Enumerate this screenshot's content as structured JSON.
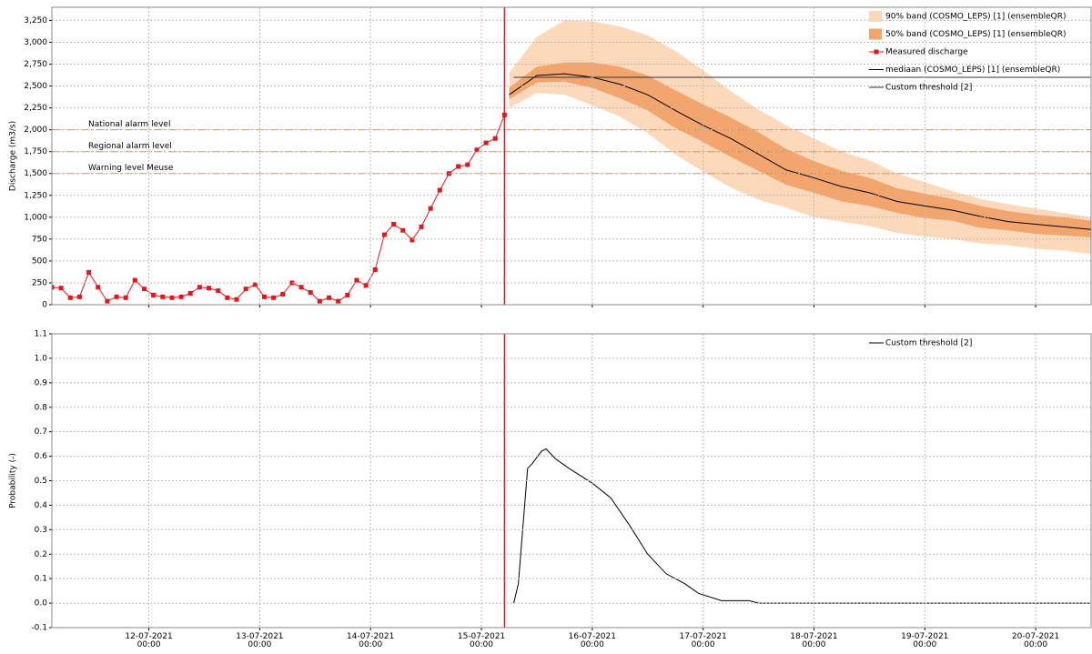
{
  "chart_data": [
    {
      "type": "forecast",
      "ylabel": "Discharge (m3/s)",
      "xlim": [
        "11-07-2021 03:00",
        "20-07-2021 12:00"
      ],
      "ylim": [
        0,
        3400
      ],
      "yticks": [
        0,
        250,
        500,
        750,
        {
          "value": 1000,
          "label": "1,000"
        },
        {
          "value": 1250,
          "label": "1,250"
        },
        {
          "value": 1500,
          "label": "1,500"
        },
        {
          "value": 1750,
          "label": "1,750"
        },
        {
          "value": 2000,
          "label": "2,000"
        },
        {
          "value": 2250,
          "label": "2,250"
        },
        {
          "value": 2500,
          "label": "2,500"
        },
        {
          "value": 2750,
          "label": "2,750"
        },
        {
          "value": 3000,
          "label": "3,000"
        },
        {
          "value": 3250,
          "label": "3,250"
        }
      ],
      "grid": true,
      "vline": "15-07-2021 05:00",
      "vline_color": "#e8141b",
      "levels": [
        {
          "label": "National alarm level",
          "value": 2000
        },
        {
          "label": "Regional alarm level",
          "value": 1750
        },
        {
          "label": "Warning level Meuse",
          "value": 1500
        }
      ],
      "level_color": "#e08a2a",
      "bands": [
        {
          "name": "90% band (COSMO_LEPS) [1]  (ensembleQR)",
          "color": "#fdd9bc",
          "x": [
            "15-07-2021 06:00",
            "15-07-2021 12:00",
            "15-07-2021 18:00",
            "16-07-2021 00:00",
            "16-07-2021 06:00",
            "16-07-2021 12:00",
            "16-07-2021 18:00",
            "17-07-2021 00:00",
            "17-07-2021 06:00",
            "17-07-2021 12:00",
            "17-07-2021 18:00",
            "18-07-2021 00:00",
            "18-07-2021 06:00",
            "18-07-2021 12:00",
            "18-07-2021 18:00",
            "19-07-2021 00:00",
            "19-07-2021 06:00",
            "19-07-2021 12:00",
            "19-07-2021 18:00",
            "20-07-2021 00:00",
            "20-07-2021 06:00",
            "20-07-2021 12:00"
          ],
          "lower": [
            2250,
            2420,
            2400,
            2280,
            2150,
            1960,
            1720,
            1520,
            1340,
            1200,
            1110,
            1000,
            950,
            900,
            820,
            780,
            750,
            700,
            680,
            640,
            620,
            580
          ],
          "upper": [
            2650,
            3060,
            3250,
            3240,
            3180,
            3080,
            2900,
            2680,
            2440,
            2230,
            2050,
            1900,
            1750,
            1650,
            1500,
            1400,
            1300,
            1210,
            1150,
            1100,
            1050,
            1000
          ]
        },
        {
          "name": "50% band (COSMO_LEPS) [1]  (ensembleQR)",
          "color": "#f3a56e",
          "x": [
            "15-07-2021 06:00",
            "15-07-2021 12:00",
            "15-07-2021 18:00",
            "16-07-2021 00:00",
            "16-07-2021 06:00",
            "16-07-2021 12:00",
            "16-07-2021 18:00",
            "17-07-2021 00:00",
            "17-07-2021 06:00",
            "17-07-2021 12:00",
            "17-07-2021 18:00",
            "18-07-2021 00:00",
            "18-07-2021 06:00",
            "18-07-2021 12:00",
            "18-07-2021 18:00",
            "19-07-2021 00:00",
            "19-07-2021 06:00",
            "19-07-2021 12:00",
            "19-07-2021 18:00",
            "20-07-2021 00:00",
            "20-07-2021 06:00",
            "20-07-2021 12:00"
          ],
          "lower": [
            2350,
            2540,
            2550,
            2480,
            2360,
            2220,
            2020,
            1860,
            1690,
            1530,
            1370,
            1280,
            1180,
            1130,
            1050,
            990,
            960,
            880,
            850,
            810,
            790,
            770
          ],
          "upper": [
            2480,
            2720,
            2770,
            2770,
            2720,
            2620,
            2450,
            2290,
            2140,
            1970,
            1780,
            1640,
            1530,
            1450,
            1330,
            1270,
            1210,
            1130,
            1070,
            1030,
            1000,
            960
          ]
        }
      ],
      "series": [
        {
          "name": "Measured discharge",
          "color": "#e8141b",
          "markers": true,
          "x": [
            "11-07-2021 03:00",
            "11-07-2021 05:00",
            "11-07-2021 07:00",
            "11-07-2021 09:00",
            "11-07-2021 11:00",
            "11-07-2021 13:00",
            "11-07-2021 15:00",
            "11-07-2021 17:00",
            "11-07-2021 19:00",
            "11-07-2021 21:00",
            "11-07-2021 23:00",
            "12-07-2021 01:00",
            "12-07-2021 03:00",
            "12-07-2021 05:00",
            "12-07-2021 07:00",
            "12-07-2021 09:00",
            "12-07-2021 11:00",
            "12-07-2021 13:00",
            "12-07-2021 15:00",
            "12-07-2021 17:00",
            "12-07-2021 19:00",
            "12-07-2021 21:00",
            "12-07-2021 23:00",
            "13-07-2021 01:00",
            "13-07-2021 03:00",
            "13-07-2021 05:00",
            "13-07-2021 07:00",
            "13-07-2021 09:00",
            "13-07-2021 11:00",
            "13-07-2021 13:00",
            "13-07-2021 15:00",
            "13-07-2021 17:00",
            "13-07-2021 19:00",
            "13-07-2021 21:00",
            "13-07-2021 23:00",
            "14-07-2021 01:00",
            "14-07-2021 03:00",
            "14-07-2021 05:00",
            "14-07-2021 07:00",
            "14-07-2021 09:00",
            "14-07-2021 11:00",
            "14-07-2021 13:00",
            "14-07-2021 15:00",
            "14-07-2021 17:00",
            "14-07-2021 19:00",
            "14-07-2021 21:00",
            "14-07-2021 23:00",
            "15-07-2021 01:00",
            "15-07-2021 03:00",
            "15-07-2021 05:00"
          ],
          "values": [
            200,
            190,
            80,
            90,
            370,
            200,
            40,
            90,
            80,
            280,
            180,
            110,
            90,
            80,
            90,
            130,
            200,
            190,
            160,
            80,
            60,
            180,
            230,
            90,
            80,
            120,
            250,
            200,
            140,
            40,
            80,
            40,
            110,
            280,
            220,
            400,
            800,
            920,
            850,
            740,
            890,
            1100,
            1310,
            1500,
            1580,
            1600,
            1770,
            1850,
            1900,
            2170
          ]
        },
        {
          "name": "mediaan (COSMO_LEPS) [1]  (ensembleQR)",
          "color": "#000000",
          "markers": false,
          "x": [
            "15-07-2021 06:00",
            "15-07-2021 12:00",
            "15-07-2021 18:00",
            "16-07-2021 00:00",
            "16-07-2021 06:00",
            "16-07-2021 12:00",
            "16-07-2021 18:00",
            "17-07-2021 00:00",
            "17-07-2021 06:00",
            "17-07-2021 12:00",
            "17-07-2021 18:00",
            "18-07-2021 00:00",
            "18-07-2021 06:00",
            "18-07-2021 12:00",
            "18-07-2021 18:00",
            "19-07-2021 00:00",
            "19-07-2021 06:00",
            "19-07-2021 12:00",
            "19-07-2021 18:00",
            "20-07-2021 00:00",
            "20-07-2021 06:00",
            "20-07-2021 12:00"
          ],
          "values": [
            2400,
            2620,
            2640,
            2600,
            2520,
            2400,
            2220,
            2050,
            1900,
            1720,
            1540,
            1450,
            1350,
            1280,
            1180,
            1130,
            1080,
            1010,
            950,
            920,
            890,
            860
          ]
        },
        {
          "name": "Custom threshold [2]",
          "color": "#333333",
          "markers": false,
          "x": [
            "15-07-2021 07:00",
            "20-07-2021 12:00"
          ],
          "values": [
            2600,
            2600
          ]
        }
      ]
    },
    {
      "type": "forecast",
      "ylabel": "Probability (-)",
      "xlim": [
        "11-07-2021 03:00",
        "20-07-2021 12:00"
      ],
      "xticks": [
        "12-07-2021 00:00",
        "13-07-2021 00:00",
        "14-07-2021 00:00",
        "15-07-2021 00:00",
        "16-07-2021 00:00",
        "17-07-2021 00:00",
        "18-07-2021 00:00",
        "19-07-2021 00:00",
        "20-07-2021 00:00"
      ],
      "ylim": [
        -0.1,
        1.1
      ],
      "yticks": [
        -0.1,
        {
          "value": 0,
          "label": "0.0"
        },
        0.1,
        0.2,
        0.3,
        0.4,
        0.5,
        0.6,
        0.7,
        0.8,
        0.9,
        {
          "value": 1,
          "label": "1.0"
        },
        1.1
      ],
      "grid": true,
      "vline": "15-07-2021 05:00",
      "vline_color": "#e8141b",
      "series": [
        {
          "name": "Custom threshold [2]",
          "color": "#000000",
          "markers": false,
          "x": [
            "15-07-2021 07:00",
            "15-07-2021 08:00",
            "15-07-2021 10:00",
            "15-07-2021 11:00",
            "15-07-2021 13:00",
            "15-07-2021 14:00",
            "15-07-2021 16:00",
            "15-07-2021 19:00",
            "16-07-2021 00:00",
            "16-07-2021 04:00",
            "16-07-2021 08:00",
            "16-07-2021 12:00",
            "16-07-2021 16:00",
            "16-07-2021 20:00",
            "16-07-2021 23:00",
            "17-07-2021 04:00",
            "17-07-2021 10:00",
            "17-07-2021 12:00",
            "20-07-2021 12:00"
          ],
          "values": [
            0,
            0.08,
            0.55,
            0.57,
            0.62,
            0.63,
            0.59,
            0.55,
            0.49,
            0.43,
            0.32,
            0.2,
            0.12,
            0.08,
            0.04,
            0.01,
            0.01,
            0,
            0
          ]
        }
      ]
    }
  ]
}
